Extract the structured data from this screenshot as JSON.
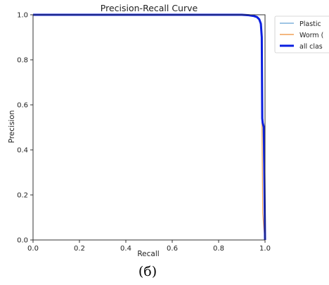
{
  "caption": "(б)",
  "colors": {
    "plastic": "#7fb2dc",
    "worm": "#f0a056",
    "all_classes": "#0b1fe0",
    "axis": "#333333",
    "background": "#ffffff"
  },
  "chart_data": {
    "type": "line",
    "title": "Precision-Recall Curve",
    "xlabel": "Recall",
    "ylabel": "Precision",
    "xlim": [
      0.0,
      1.0
    ],
    "ylim": [
      0.0,
      1.0
    ],
    "x_ticks": [
      "0.0",
      "0.2",
      "0.4",
      "0.6",
      "0.8",
      "1.0"
    ],
    "y_ticks": [
      "0.0",
      "0.2",
      "0.4",
      "0.6",
      "0.8",
      "1.0"
    ],
    "grid": false,
    "legend_position": "outside-right-top",
    "series": [
      {
        "name": "Plastic",
        "color": "#7fb2dc",
        "x": [
          0.0,
          0.85,
          0.9,
          0.94,
          0.96,
          0.97,
          0.98,
          0.985,
          0.99,
          0.995,
          1.0
        ],
        "y": [
          1.0,
          1.0,
          1.0,
          0.998,
          0.995,
          0.99,
          0.97,
          0.95,
          0.55,
          0.3,
          0.0
        ]
      },
      {
        "name": "Worm (...)",
        "color": "#f0a056",
        "x": [
          0.0,
          0.85,
          0.9,
          0.94,
          0.96,
          0.97,
          0.98,
          0.985,
          0.987,
          0.99,
          0.995,
          1.0
        ],
        "y": [
          1.0,
          1.0,
          1.0,
          0.998,
          0.995,
          0.99,
          0.97,
          0.93,
          0.5,
          0.12,
          0.05,
          0.0
        ]
      },
      {
        "name": "all classes",
        "color": "#0b1fe0",
        "x": [
          0.0,
          0.85,
          0.9,
          0.93,
          0.95,
          0.965,
          0.975,
          0.982,
          0.986,
          0.988,
          0.99,
          0.995,
          1.0
        ],
        "y": [
          1.0,
          1.0,
          1.0,
          0.998,
          0.995,
          0.99,
          0.98,
          0.96,
          0.9,
          0.54,
          0.52,
          0.5,
          0.0
        ]
      }
    ],
    "legend_labels": [
      "Plastic",
      "Worm (",
      "all clas"
    ]
  }
}
